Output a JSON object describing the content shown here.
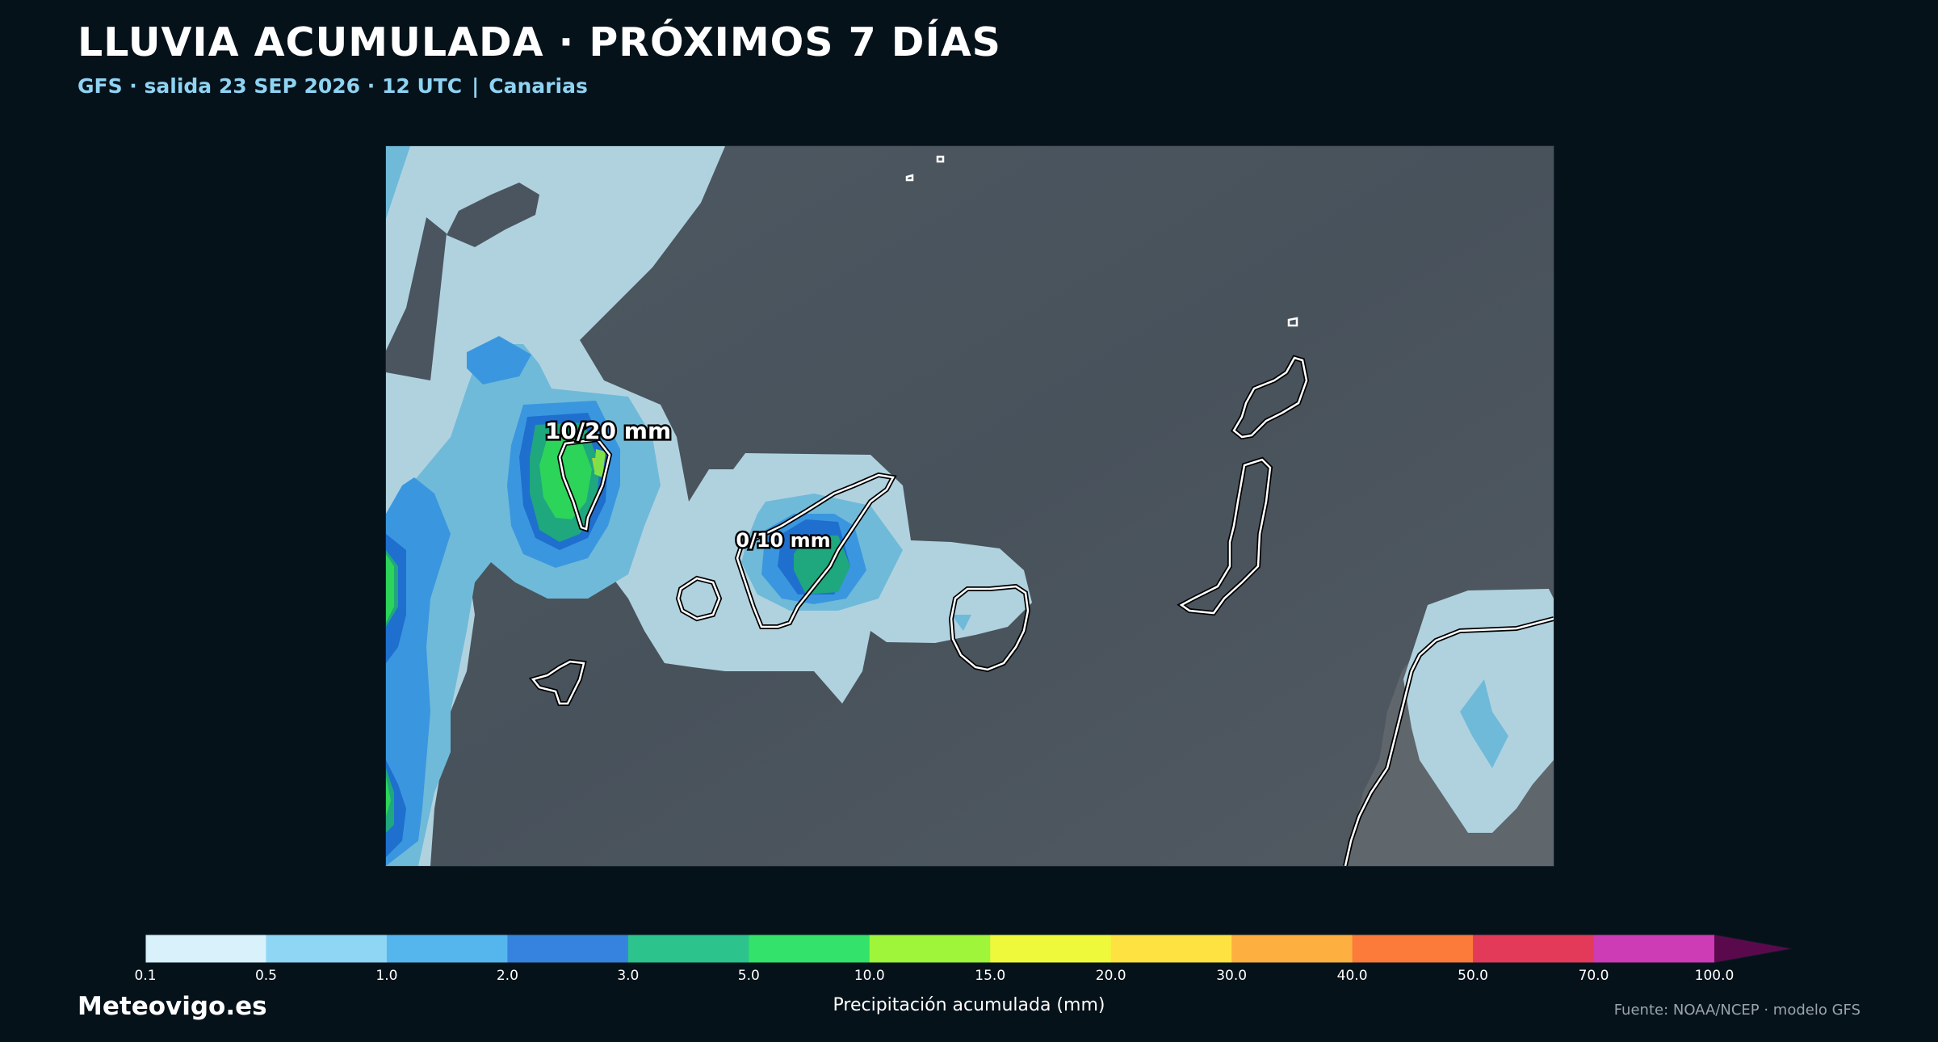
{
  "header": {
    "title": "LLUVIA ACUMULADA · PRÓXIMOS 7 DÍAS",
    "subtitle_model": "GFS · salida 23 SEP 2026 · 12 UTC",
    "subtitle_separator": "|",
    "subtitle_region": "Canarias"
  },
  "map": {
    "annotations": [
      {
        "id": "la-palma",
        "text": "10/20 mm"
      },
      {
        "id": "tenerife",
        "text": "0/10 mm"
      }
    ],
    "colors": {
      "sea": "#4b555f",
      "land_highlight": "#5e666d",
      "coastline": "#ffffff"
    }
  },
  "colorbar": {
    "label": "Precipitación acumulada (mm)",
    "ticks": [
      "0.1",
      "0.5",
      "1.0",
      "2.0",
      "3.0",
      "5.0",
      "10.0",
      "15.0",
      "20.0",
      "30.0",
      "40.0",
      "50.0",
      "70.0",
      "100.0"
    ],
    "colors": [
      "#d9f1fb",
      "#8fd6f5",
      "#55b6ee",
      "#3683df",
      "#2cc38c",
      "#33e26a",
      "#9ef53a",
      "#eef93c",
      "#fde242",
      "#fdb040",
      "#fc7b3b",
      "#e33a59",
      "#cd3bb5",
      "#5a0a4c"
    ],
    "extend": "max"
  },
  "footer": {
    "brand": "Meteovigo.es",
    "source": "Fuente: NOAA/NCEP · modelo GFS"
  }
}
